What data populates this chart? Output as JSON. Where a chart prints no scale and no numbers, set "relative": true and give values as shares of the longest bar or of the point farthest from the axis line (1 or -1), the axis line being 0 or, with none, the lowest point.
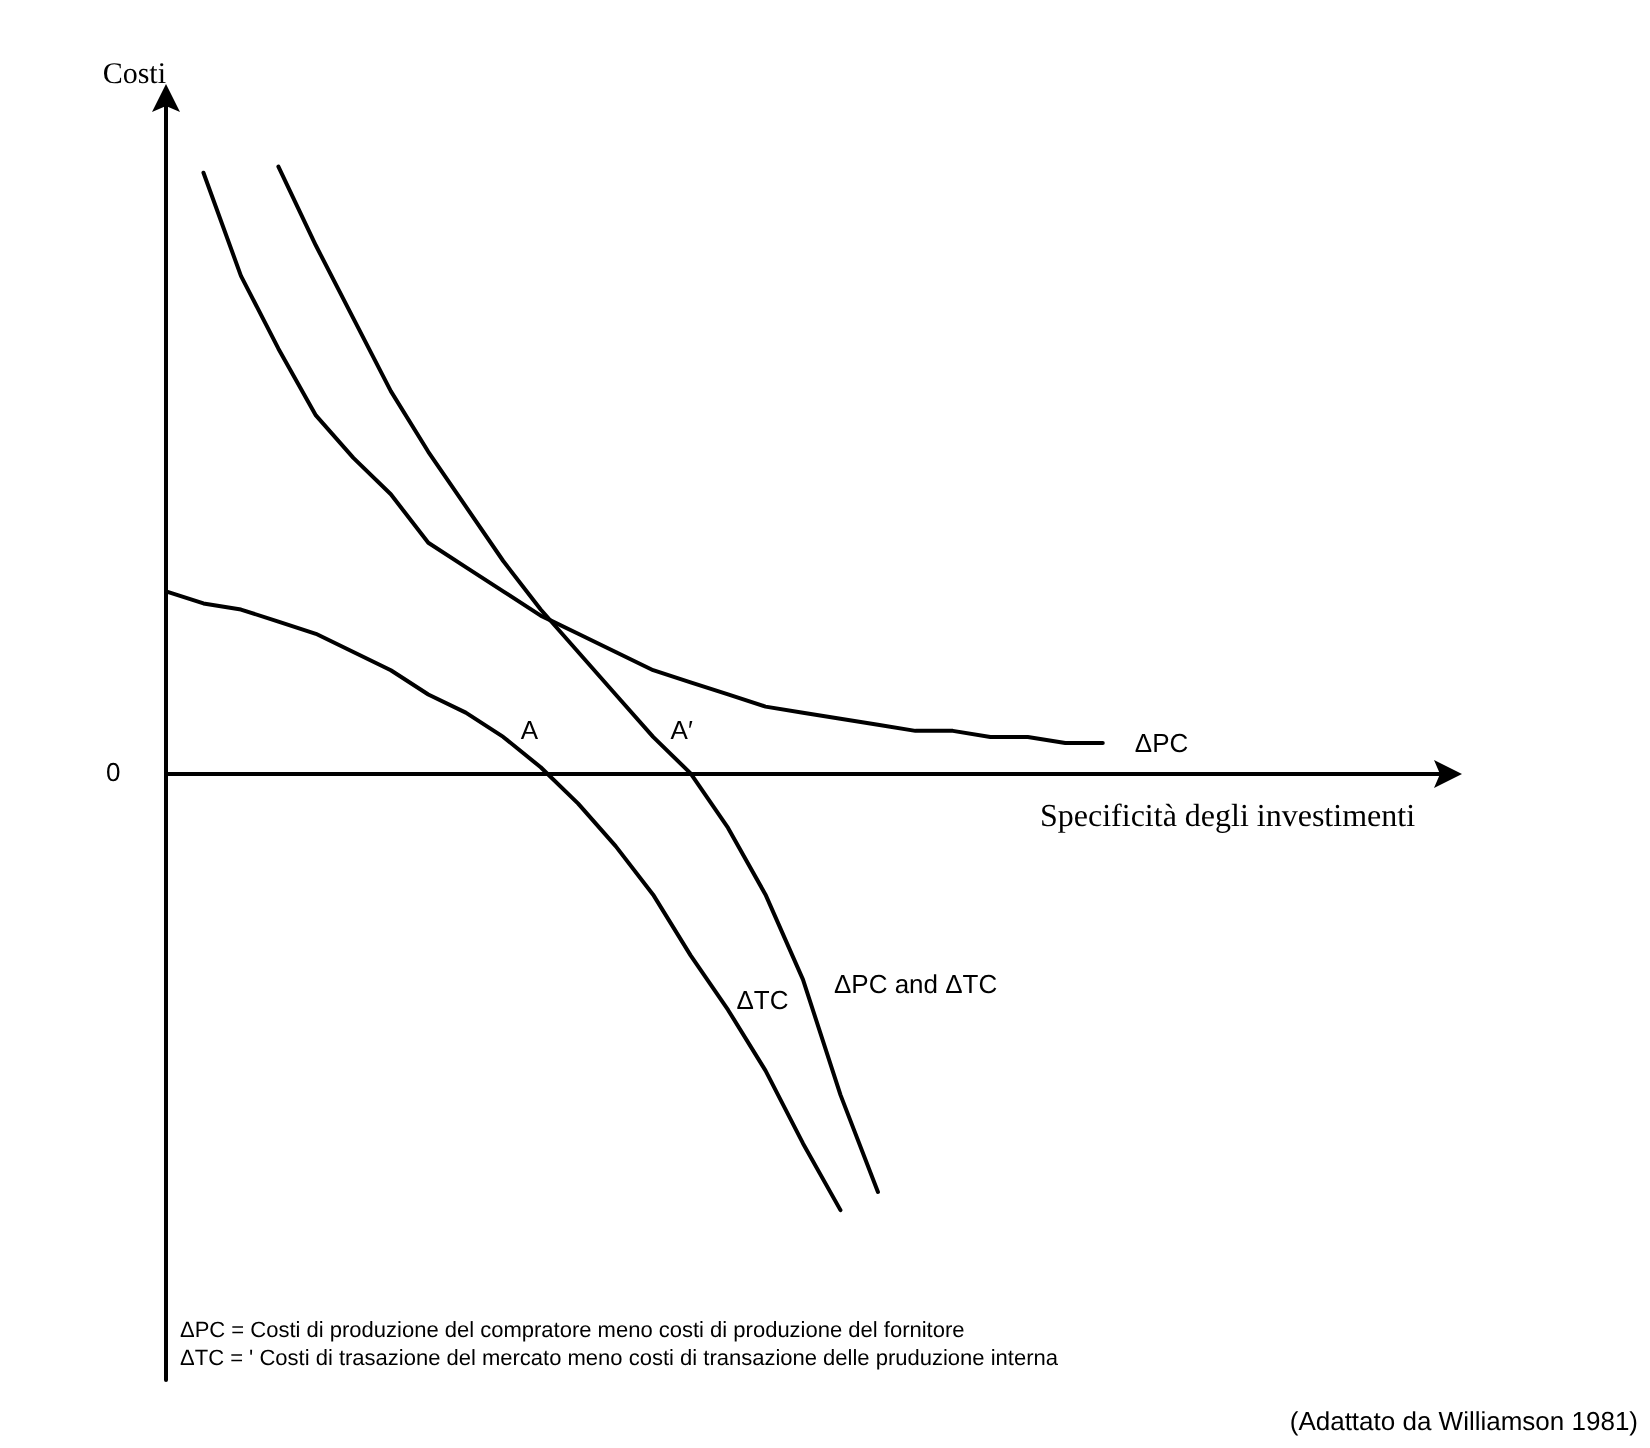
{
  "chart_data": {
    "type": "line",
    "relative": true,
    "ylabel": "Costi",
    "xlabel": "Specificità degli investimenti",
    "marker": "none",
    "line_style": "solid",
    "grid": false,
    "legend": false,
    "categories": [
      null,
      null,
      null,
      null,
      null,
      null,
      null,
      null,
      null,
      null,
      null,
      null,
      null,
      null,
      null,
      null,
      null,
      null,
      null,
      null,
      null,
      null,
      null,
      null,
      null,
      null,
      null,
      null,
      null,
      null,
      null,
      null,
      null,
      null,
      null
    ],
    "series": [
      {
        "name": "ΔPC",
        "color": "#000000",
        "values": [
          null,
          0.99,
          0.82,
          0.7,
          0.59,
          0.52,
          0.46,
          0.38,
          0.34,
          0.3,
          0.26,
          0.23,
          0.2,
          0.17,
          0.15,
          0.13,
          0.11,
          0.1,
          0.09,
          0.08,
          0.07,
          0.07,
          0.06,
          0.06,
          0.05,
          0.05,
          null,
          null,
          null,
          null,
          null,
          null,
          null,
          null,
          null
        ]
      },
      {
        "name": "ΔTC",
        "color": "#000000",
        "values": [
          0.3,
          0.28,
          0.27,
          0.25,
          0.23,
          0.2,
          0.17,
          0.13,
          0.1,
          0.06,
          0.01,
          -0.05,
          -0.12,
          -0.2,
          -0.3,
          -0.39,
          -0.49,
          -0.61,
          -0.72,
          null,
          null,
          null,
          null,
          null,
          null,
          null,
          null,
          null,
          null,
          null,
          null,
          null,
          null,
          null,
          null
        ]
      },
      {
        "name": "ΔPC and ΔTC",
        "color": "#000000",
        "values": [
          null,
          null,
          null,
          1.0,
          0.87,
          0.75,
          0.63,
          0.53,
          0.44,
          0.35,
          0.27,
          0.2,
          0.13,
          0.06,
          0.0,
          -0.09,
          -0.2,
          -0.34,
          -0.53,
          -0.69,
          null,
          null,
          null,
          null,
          null,
          null,
          null,
          null,
          null,
          null,
          null,
          null,
          null,
          null,
          null
        ]
      }
    ],
    "annotations": [
      "0",
      "A",
      "A′",
      "ΔPC = Costi di produzione del compratore meno costi di produzione del fornitore",
      "ΔTC = ' Costi di trasazione del mercato meno costi di transazione delle pruduzione interna",
      "(Adattato da Williamson 1981)"
    ]
  }
}
